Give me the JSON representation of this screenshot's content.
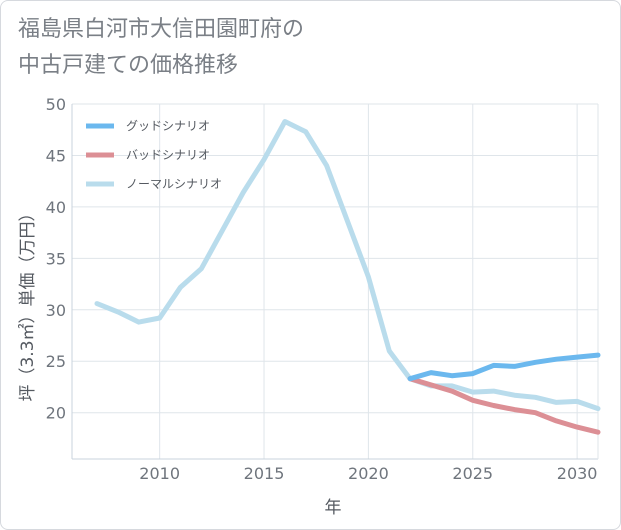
{
  "chart_data": {
    "type": "line",
    "title_line1": "福島県白河市大信田園町府の",
    "title_line2": "中古戸建ての価格推移",
    "xlabel": "年",
    "ylabel": "坪（3.3㎡）単価（万円）",
    "xlim": [
      2005.8,
      2031
    ],
    "ylim": [
      15.5,
      50
    ],
    "xticks": [
      2010,
      2015,
      2020,
      2025,
      2030
    ],
    "yticks": [
      20,
      25,
      30,
      35,
      40,
      45,
      50
    ],
    "grid": true,
    "legend_position": "top-left",
    "series": [
      {
        "name": "ノーマルシナリオ",
        "color": "#b9dcec",
        "x": [
          2007,
          2008,
          2009,
          2010,
          2011,
          2012,
          2013,
          2014,
          2015,
          2016,
          2017,
          2018,
          2019,
          2020,
          2021,
          2022,
          2023,
          2024,
          2025,
          2026,
          2027,
          2028,
          2029,
          2030,
          2031
        ],
        "y": [
          30.6,
          29.8,
          28.8,
          29.2,
          32.2,
          34.0,
          37.7,
          41.4,
          44.6,
          48.3,
          47.3,
          44.0,
          38.6,
          33.2,
          26.0,
          23.3,
          22.6,
          22.6,
          22.0,
          22.1,
          21.7,
          21.5,
          21.0,
          21.1,
          20.4
        ]
      },
      {
        "name": "グッドシナリオ",
        "color": "#6bb8ee",
        "x": [
          2022,
          2023,
          2024,
          2025,
          2026,
          2027,
          2028,
          2029,
          2030,
          2031
        ],
        "y": [
          23.3,
          23.9,
          23.6,
          23.8,
          24.6,
          24.5,
          24.9,
          25.2,
          25.4,
          25.6
        ]
      },
      {
        "name": "バッドシナリオ",
        "color": "#dc8f95",
        "x": [
          2022,
          2023,
          2024,
          2025,
          2026,
          2027,
          2028,
          2029,
          2030,
          2031
        ],
        "y": [
          23.3,
          22.7,
          22.1,
          21.2,
          20.7,
          20.3,
          20.0,
          19.2,
          18.6,
          18.1
        ]
      }
    ],
    "legend_order": [
      "グッドシナリオ",
      "バッドシナリオ",
      "ノーマルシナリオ"
    ]
  }
}
